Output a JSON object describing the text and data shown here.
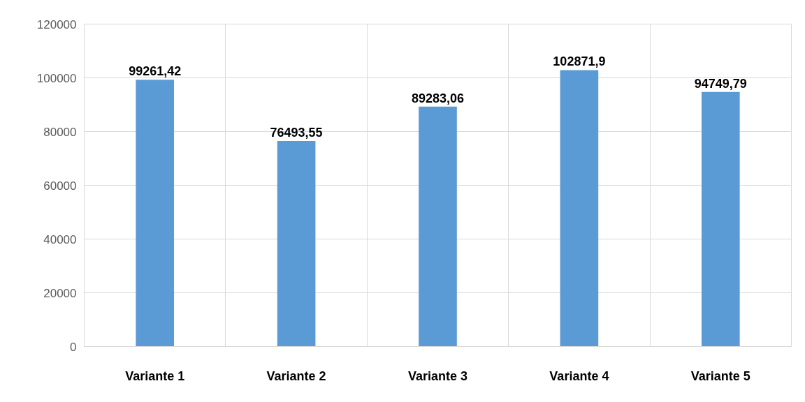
{
  "chart_data": {
    "type": "bar",
    "categories": [
      "Variante 1",
      "Variante 2",
      "Variante 3",
      "Variante 4",
      "Variante 5"
    ],
    "values": [
      99261.42,
      76493.55,
      89283.06,
      102871.9,
      94749.79
    ],
    "value_labels": [
      "99261,42",
      "76493,55",
      "89283,06",
      "102871,9",
      "94749,79"
    ],
    "color": "#5b9bd5",
    "ylim": [
      0,
      120000
    ],
    "yticks": [
      0,
      20000,
      40000,
      60000,
      80000,
      100000,
      120000
    ],
    "grid": true
  }
}
